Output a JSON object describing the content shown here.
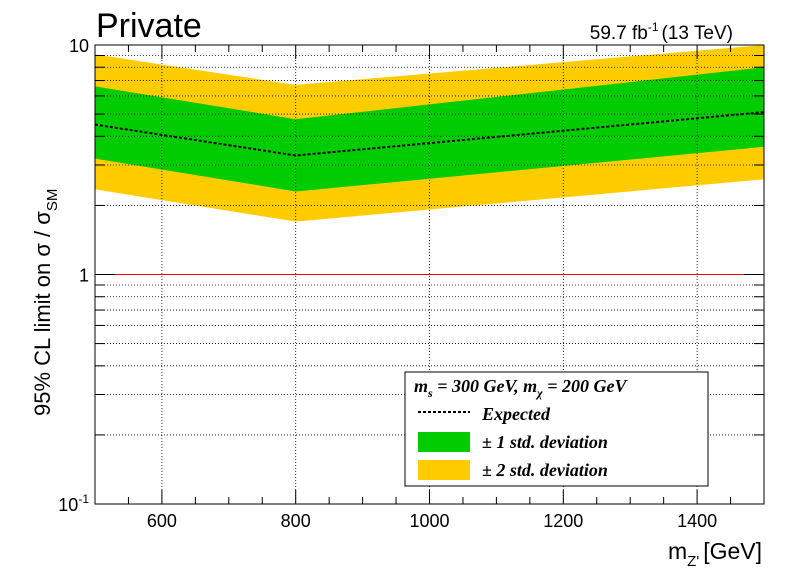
{
  "chart_data": {
    "type": "area",
    "title": "Private",
    "lumi_main": "59.7 fb",
    "lumi_sup": "-1",
    "lumi_energy": "(13 TeV)",
    "xlabel_main": "m",
    "xlabel_sub": "Z'",
    "xlabel_unit": "[GeV]",
    "ylabel_main": "95% CL limit on  σ / σ",
    "ylabel_sub": "SM",
    "x_scale": "linear",
    "y_scale": "log",
    "xlim": [
      500,
      1500
    ],
    "ylim": [
      0.1,
      10
    ],
    "x_ticks": [
      {
        "value": 600,
        "label": "600"
      },
      {
        "value": 800,
        "label": "800"
      },
      {
        "value": 1000,
        "label": "1000"
      },
      {
        "value": 1200,
        "label": "1200"
      },
      {
        "value": 1400,
        "label": "1400"
      }
    ],
    "y_ticks": [
      {
        "value": 0.1,
        "label_main": "10",
        "label_sup": "-1"
      },
      {
        "value": 1,
        "label_main": "1",
        "label_sup": ""
      },
      {
        "value": 10,
        "label_main": "10",
        "label_sup": ""
      }
    ],
    "grid": true,
    "legend_position": "bottom-right",
    "legend_header": {
      "m1": "m",
      "s1": "s",
      "eq1": " = 300 GeV, ",
      "m2": "m",
      "s2": "χ",
      "eq2": " = 200 GeV"
    },
    "x": [
      500,
      800,
      1500
    ],
    "series": [
      {
        "name": "Expected",
        "style": "dashed",
        "color": "#000000",
        "values": [
          4.5,
          3.3,
          5.1
        ]
      },
      {
        "name": "± 1 std. deviation",
        "style": "band",
        "color": "#00cc00",
        "lower": [
          3.2,
          2.3,
          3.6
        ],
        "upper": [
          6.6,
          4.75,
          8.0
        ]
      },
      {
        "name": "± 2 std. deviation",
        "style": "band",
        "color": "#ffcc00",
        "lower": [
          2.35,
          1.7,
          2.6
        ],
        "upper": [
          9.1,
          6.7,
          10.0
        ]
      }
    ],
    "reference_line": {
      "value": 1,
      "x_range": [
        530,
        1470
      ],
      "color": "#ff0000"
    }
  }
}
